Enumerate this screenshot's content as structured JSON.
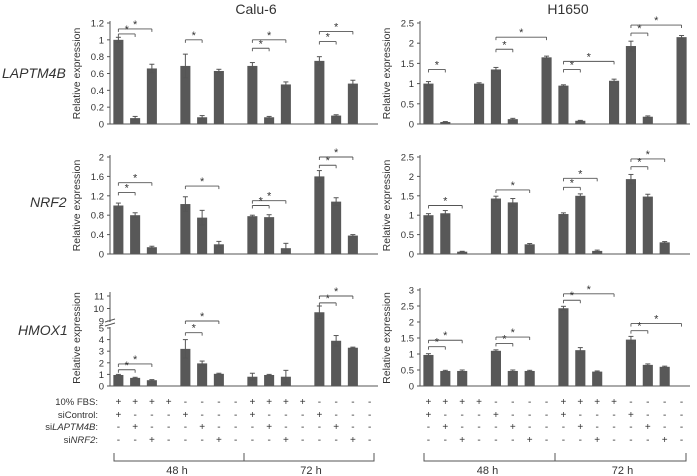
{
  "columns": [
    "Calu-6",
    "H1650"
  ],
  "rows": [
    "LAPTM4B",
    "NRF2",
    "HMOX1"
  ],
  "ylabel": "Relative expression",
  "sig_label": "*",
  "conditions": {
    "labels": [
      "10% FBS:",
      "siControl:",
      "siLAPTM4B:",
      "siNRF2:"
    ],
    "label_parts": [
      [
        "10% FBS:"
      ],
      [
        "siControl:"
      ],
      [
        "si",
        "LAPTM4B",
        ":"
      ],
      [
        "si",
        "NRF2",
        ":"
      ]
    ],
    "italic_parts": [
      [],
      [],
      [
        "LAPTM4B"
      ],
      [
        "NRF2"
      ]
    ],
    "signs": [
      [
        "+",
        "+",
        "+",
        "+",
        "-",
        "-",
        "-",
        "-",
        "+",
        "+",
        "+",
        "+",
        "-",
        "-",
        "-",
        "-"
      ],
      [
        "+",
        "-",
        "-",
        "-",
        "+",
        "-",
        "-",
        "-",
        "+",
        "-",
        "-",
        "-",
        "+",
        "-",
        "-",
        "-"
      ],
      [
        "-",
        "+",
        "-",
        "-",
        "-",
        "+",
        "-",
        "-",
        "-",
        "+",
        "-",
        "-",
        "-",
        "+",
        "-",
        "-"
      ],
      [
        "-",
        "-",
        "+",
        "-",
        "-",
        "-",
        "+",
        "-",
        "-",
        "-",
        "+",
        "-",
        "-",
        "-",
        "+",
        "-"
      ]
    ]
  },
  "time_groups": [
    "48 h",
    "72 h"
  ],
  "colors": {
    "bar": "#585858",
    "axis": "#555555",
    "text": "#333333"
  },
  "chart_data": [
    {
      "type": "bar",
      "title": "Calu-6",
      "row_label": "LAPTM4B",
      "ylabel": "Relative expression",
      "ylim": [
        0,
        1.2
      ],
      "yticks": [
        0,
        0.2,
        0.4,
        0.6,
        0.8,
        1,
        1.2
      ],
      "values": [
        1.0,
        0.07,
        0.66,
        0,
        0.69,
        0.08,
        0.63,
        0,
        0.69,
        0.08,
        0.47,
        0,
        0.75,
        0.1,
        0.48,
        0
      ],
      "errors": [
        0.03,
        0.02,
        0.05,
        0,
        0.14,
        0.02,
        0.02,
        0,
        0.04,
        0.01,
        0.03,
        0,
        0.05,
        0.01,
        0.04,
        0
      ],
      "significance": [
        [
          0,
          2,
          1.13
        ],
        [
          0,
          1,
          1.07
        ],
        [
          4,
          5,
          1.0
        ],
        [
          8,
          10,
          1.0
        ],
        [
          8,
          9,
          0.9
        ],
        [
          12,
          14,
          1.1
        ],
        [
          12,
          13,
          0.98
        ]
      ]
    },
    {
      "type": "bar",
      "title": "H1650",
      "row_label": "LAPTM4B",
      "ylabel": "Relative expression",
      "ylim": [
        0,
        2.5
      ],
      "yticks": [
        0,
        0.5,
        1,
        1.5,
        2,
        2.5
      ],
      "values": [
        1.0,
        0.05,
        0,
        1.0,
        1.35,
        0.12,
        0,
        1.65,
        0.95,
        0.08,
        0,
        1.07,
        1.93,
        0.18,
        0,
        2.15
      ],
      "errors": [
        0.05,
        0.01,
        0,
        0.02,
        0.05,
        0.02,
        0,
        0.03,
        0.02,
        0.01,
        0,
        0.04,
        0.12,
        0.02,
        0,
        0.04
      ],
      "significance": [
        [
          0,
          1,
          1.35
        ],
        [
          4,
          7,
          2.15
        ],
        [
          4,
          5,
          1.85
        ],
        [
          8,
          11,
          1.55
        ],
        [
          8,
          9,
          1.35
        ],
        [
          12,
          15,
          2.45
        ],
        [
          12,
          13,
          2.25
        ]
      ]
    },
    {
      "type": "bar",
      "title": "",
      "row_label": "NRF2",
      "ylabel": "Relative expression",
      "ylim": [
        0,
        2.0
      ],
      "yticks": [
        0,
        0.4,
        0.8,
        1.2,
        1.6,
        2.0
      ],
      "values": [
        1.0,
        0.8,
        0.14,
        0,
        1.03,
        0.75,
        0.2,
        0,
        0.78,
        0.76,
        0.12,
        0,
        1.6,
        1.08,
        0.38,
        0
      ],
      "errors": [
        0.05,
        0.05,
        0.02,
        0,
        0.15,
        0.15,
        0.06,
        0,
        0.02,
        0.05,
        0.1,
        0,
        0.12,
        0.08,
        0.02,
        0
      ],
      "significance": [
        [
          0,
          2,
          1.47
        ],
        [
          0,
          1,
          1.27
        ],
        [
          4,
          6,
          1.4
        ],
        [
          8,
          10,
          1.1
        ],
        [
          8,
          9,
          1.0
        ],
        [
          12,
          14,
          2.0
        ],
        [
          12,
          13,
          1.83
        ]
      ]
    },
    {
      "type": "bar",
      "title": "",
      "row_label": "NRF2",
      "ylabel": "Relative expression",
      "ylim": [
        0,
        2.5
      ],
      "yticks": [
        0,
        0.5,
        1,
        1.5,
        2,
        2.5
      ],
      "values": [
        1.0,
        1.05,
        0.06,
        0,
        1.43,
        1.33,
        0.25,
        0,
        1.03,
        1.5,
        0.08,
        0,
        1.93,
        1.48,
        0.3,
        0
      ],
      "errors": [
        0.04,
        0.07,
        0.01,
        0,
        0.06,
        0.1,
        0.02,
        0,
        0.03,
        0.05,
        0.02,
        0,
        0.12,
        0.06,
        0.02,
        0
      ],
      "significance": [
        [
          0,
          2,
          1.25
        ],
        [
          4,
          6,
          1.65
        ],
        [
          8,
          10,
          1.95
        ],
        [
          8,
          9,
          1.72
        ],
        [
          12,
          14,
          2.45
        ],
        [
          12,
          13,
          2.25
        ]
      ]
    },
    {
      "type": "bar",
      "title": "",
      "row_label": "HMOX1",
      "ylabel": "Relative expression",
      "broken_axis": true,
      "yticks": [
        0,
        1,
        2,
        3,
        4,
        5,
        9,
        10,
        11
      ],
      "values": [
        0.95,
        0.7,
        0.5,
        0,
        3.2,
        1.95,
        1.05,
        0,
        0.8,
        0.95,
        0.8,
        0,
        9.7,
        3.9,
        3.3,
        0
      ],
      "errors": [
        0.05,
        0.05,
        0.05,
        0,
        0.8,
        0.2,
        0.05,
        0,
        0.3,
        0.05,
        0.55,
        0,
        0.5,
        0.45,
        0.05,
        0
      ],
      "significance": [
        [
          0,
          2,
          1.9
        ],
        [
          0,
          1,
          1.4
        ],
        [
          4,
          6,
          5.3
        ],
        [
          4,
          5,
          4.6
        ],
        [
          12,
          14,
          11.05
        ],
        [
          12,
          13,
          10.45
        ]
      ]
    },
    {
      "type": "bar",
      "title": "",
      "row_label": "HMOX1",
      "ylabel": "Relative expression",
      "ylim": [
        0,
        3
      ],
      "yticks": [
        0,
        0.5,
        1,
        1.5,
        2,
        2.5,
        3
      ],
      "values": [
        0.97,
        0.47,
        0.47,
        0,
        1.1,
        0.47,
        0.47,
        0,
        2.43,
        1.12,
        0.45,
        0,
        1.45,
        0.66,
        0.6,
        0
      ],
      "errors": [
        0.04,
        0.02,
        0.03,
        0,
        0.03,
        0.03,
        0.02,
        0,
        0.06,
        0.08,
        0.02,
        0,
        0.1,
        0.03,
        0.02,
        0
      ],
      "significance": [
        [
          0,
          2,
          1.43
        ],
        [
          0,
          1,
          1.23
        ],
        [
          4,
          6,
          1.53
        ],
        [
          4,
          5,
          1.33
        ],
        [
          8,
          11,
          2.88
        ],
        [
          8,
          9,
          2.68
        ],
        [
          12,
          15,
          1.95
        ],
        [
          12,
          13,
          1.73
        ]
      ]
    }
  ]
}
